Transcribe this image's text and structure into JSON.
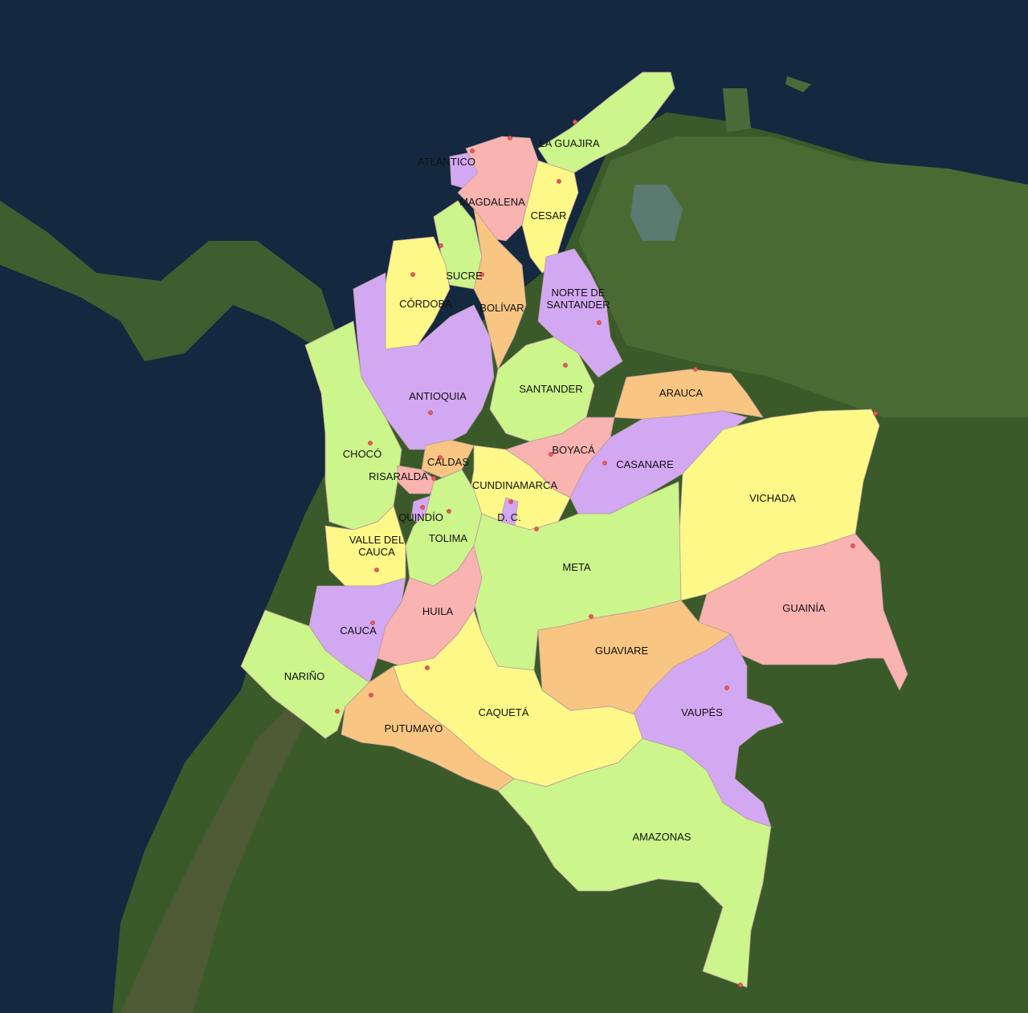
{
  "colors": {
    "ocean": "#14283f",
    "land": "#3d5a2a",
    "green": "#ccf58c",
    "purple": "#d3a8f2",
    "yellow": "#fdf888",
    "pink": "#f9b3b1",
    "orange": "#f8c583",
    "capital": "#e85a5a"
  },
  "departments": [
    {
      "id": "la-guajira",
      "label": "LA GUAJIRA",
      "color": "green"
    },
    {
      "id": "atlantico",
      "label": "ATLÁNTICO",
      "color": "purple"
    },
    {
      "id": "magdalena",
      "label": "MAGDALENA",
      "color": "pink"
    },
    {
      "id": "cesar",
      "label": "CESAR",
      "color": "yellow"
    },
    {
      "id": "sucre",
      "label": "SUCRE",
      "color": "green"
    },
    {
      "id": "cordoba",
      "label": "CÓRDOBA",
      "color": "yellow"
    },
    {
      "id": "bolivar",
      "label": "BOLÍVAR",
      "color": "orange"
    },
    {
      "id": "norte-de-santander",
      "label": [
        "NORTE DE",
        "SANTANDER"
      ],
      "color": "purple"
    },
    {
      "id": "antioquia",
      "label": "ANTIOQUIA",
      "color": "purple"
    },
    {
      "id": "santander",
      "label": "SANTANDER",
      "color": "green"
    },
    {
      "id": "arauca",
      "label": "ARAUCA",
      "color": "orange"
    },
    {
      "id": "choco",
      "label": "CHOCÓ",
      "color": "green"
    },
    {
      "id": "caldas",
      "label": "CALDAS",
      "color": "orange"
    },
    {
      "id": "risaralda",
      "label": "RISARALDA",
      "color": "pink"
    },
    {
      "id": "boyaca",
      "label": "BOYACÁ",
      "color": "pink"
    },
    {
      "id": "casanare",
      "label": "CASANARE",
      "color": "purple"
    },
    {
      "id": "cundinamarca",
      "label": "CUNDINAMARCA",
      "color": "yellow"
    },
    {
      "id": "quindio",
      "label": "QUINDÍO",
      "color": "purple"
    },
    {
      "id": "dc",
      "label": "D. C.",
      "color": "purple"
    },
    {
      "id": "tolima",
      "label": "TOLIMA",
      "color": "green"
    },
    {
      "id": "vichada",
      "label": "VICHADA",
      "color": "yellow"
    },
    {
      "id": "valle-del-cauca",
      "label": [
        "VALLE DEL",
        "CAUCA"
      ],
      "color": "yellow"
    },
    {
      "id": "meta",
      "label": "META",
      "color": "green"
    },
    {
      "id": "huila",
      "label": "HUILA",
      "color": "pink"
    },
    {
      "id": "guainia",
      "label": "GUAINÍA",
      "color": "pink"
    },
    {
      "id": "cauca",
      "label": "CAUCA",
      "color": "purple"
    },
    {
      "id": "guaviare",
      "label": "GUAVIARE",
      "color": "orange"
    },
    {
      "id": "narino",
      "label": "NARIÑO",
      "color": "green"
    },
    {
      "id": "vaupes",
      "label": "VAUPÉS",
      "color": "purple"
    },
    {
      "id": "caqueta",
      "label": "CAQUETÁ",
      "color": "yellow"
    },
    {
      "id": "putumayo",
      "label": "PUTUMAYO",
      "color": "orange"
    },
    {
      "id": "amazonas",
      "label": "AMAZONAS",
      "color": "green"
    }
  ]
}
